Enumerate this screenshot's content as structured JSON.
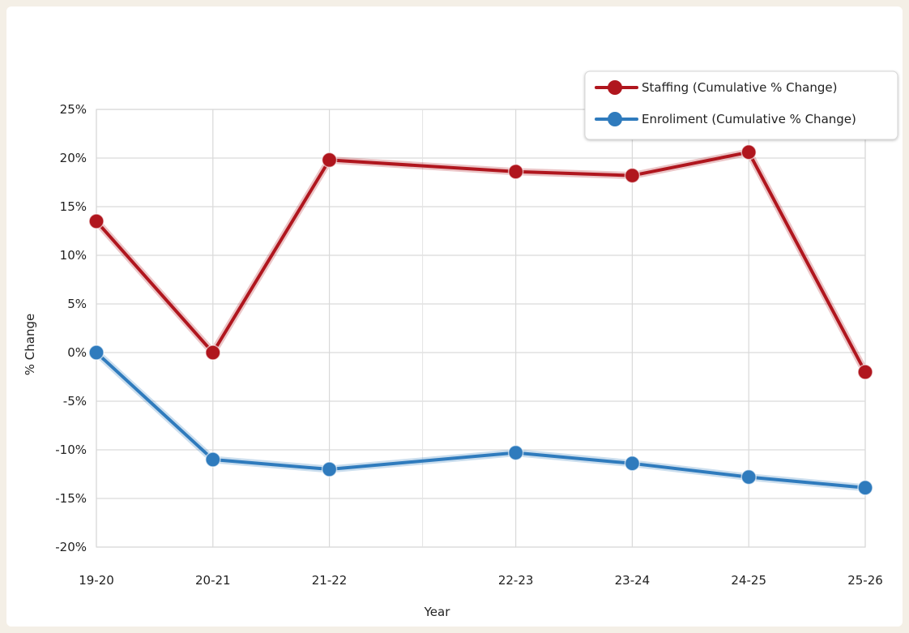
{
  "chart_data": {
    "type": "line",
    "categories": [
      "19-20",
      "20-21",
      "21-22",
      "22-23",
      "23-24",
      "24-25",
      "25-26"
    ],
    "x_positions": [
      0,
      1,
      2,
      3.6,
      4.6,
      5.6,
      6.6
    ],
    "series": [
      {
        "name": "Staffing (Cumulative % Change)",
        "color": "#b0161e",
        "values": [
          13.5,
          0,
          19.8,
          18.6,
          18.2,
          20.6,
          -2
        ]
      },
      {
        "name": "Enroliment (Cumulative % Change)",
        "color": "#2f7bbd",
        "values": [
          0,
          -11,
          -12,
          -10.3,
          -11.4,
          -12.8,
          -13.9
        ]
      }
    ],
    "yticks": [
      "25%",
      "20%",
      "15%",
      "10%",
      "5%",
      "0%",
      "-5%",
      "-10%",
      "-15%",
      "-20%"
    ],
    "ylim": [
      -20,
      25
    ],
    "xlabel": "Year",
    "ylabel": "% Change",
    "grid": true,
    "legend_position": "top-right"
  }
}
